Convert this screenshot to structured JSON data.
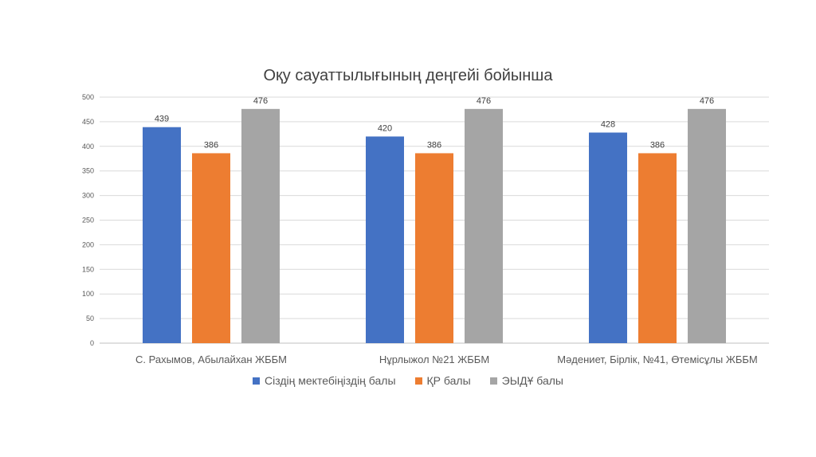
{
  "chart_data": {
    "type": "bar",
    "title": "Оқу сауаттылығының деңгейі бойынша",
    "categories": [
      "С. Рахымов, Абылайхан ЖББМ",
      "Нұрлыжол №21 ЖББМ",
      "Мәдениет, Бірлік, №41, Өтемісұлы ЖББМ"
    ],
    "series": [
      {
        "name": "Сіздің мектебіңіздің балы",
        "values": [
          439,
          420,
          428
        ],
        "color": "#4472C4"
      },
      {
        "name": "ҚР балы",
        "values": [
          386,
          386,
          386
        ],
        "color": "#ED7D31"
      },
      {
        "name": "ЭЫДҰ балы",
        "values": [
          476,
          476,
          476
        ],
        "color": "#A5A5A5"
      }
    ],
    "ylim": [
      0,
      500
    ],
    "yticks": [
      0,
      50,
      100,
      150,
      200,
      250,
      300,
      350,
      400,
      450,
      500
    ],
    "grid": true,
    "legend_position": "bottom",
    "data_labels": true
  }
}
